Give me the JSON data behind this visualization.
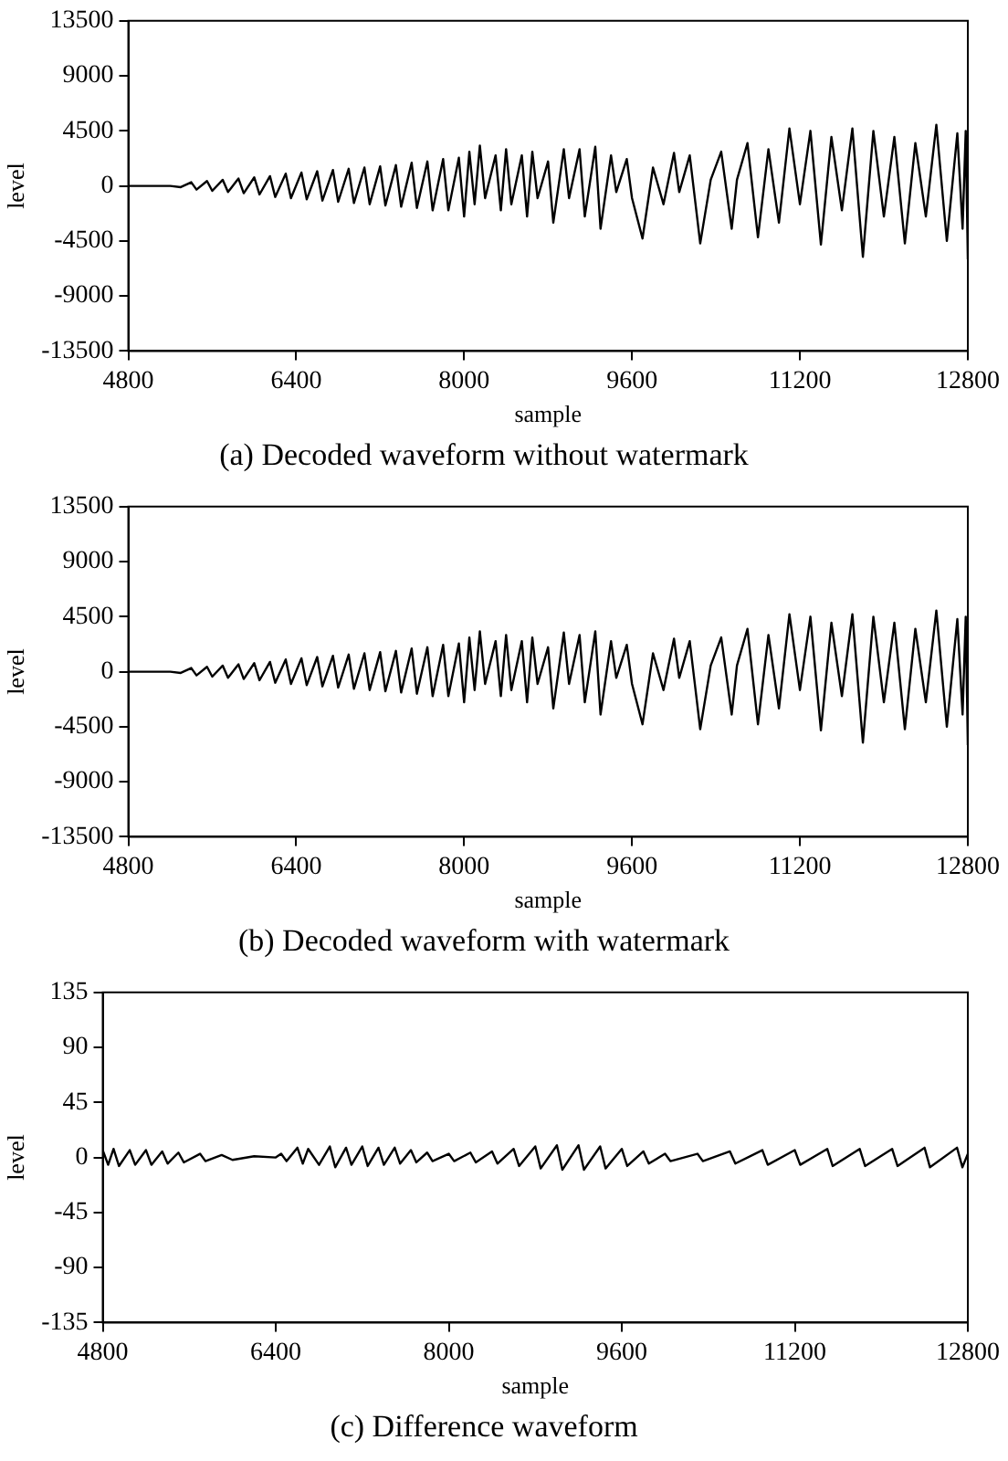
{
  "chart_data": [
    {
      "type": "line",
      "title": "(a) Decoded waveform without watermark",
      "xlabel": "sample",
      "ylabel": "level",
      "color": "#000000",
      "marker": "none",
      "line_style": "solid",
      "grid": false,
      "xlim": [
        4800,
        12800
      ],
      "ylim": [
        -13500,
        13500
      ],
      "xticks": [
        4800,
        6400,
        8000,
        9600,
        11200,
        12800
      ],
      "yticks": [
        -13500,
        -9000,
        -4500,
        0,
        4500,
        9000,
        13500
      ],
      "x": [
        4800,
        5000,
        5200,
        5300,
        5400,
        5450,
        5550,
        5600,
        5700,
        5750,
        5850,
        5900,
        6000,
        6050,
        6150,
        6200,
        6300,
        6350,
        6450,
        6500,
        6600,
        6650,
        6750,
        6800,
        6900,
        6950,
        7050,
        7100,
        7200,
        7250,
        7350,
        7400,
        7500,
        7550,
        7650,
        7700,
        7800,
        7850,
        7950,
        8000,
        8050,
        8100,
        8150,
        8200,
        8300,
        8350,
        8400,
        8450,
        8550,
        8600,
        8650,
        8700,
        8800,
        8850,
        8950,
        9000,
        9100,
        9150,
        9250,
        9300,
        9400,
        9450,
        9550,
        9600,
        9700,
        9800,
        9900,
        10000,
        10050,
        10150,
        10250,
        10350,
        10450,
        10550,
        10600,
        10700,
        10800,
        10900,
        11000,
        11100,
        11200,
        11300,
        11400,
        11500,
        11600,
        11700,
        11800,
        11900,
        12000,
        12100,
        12200,
        12300,
        12400,
        12500,
        12600,
        12700,
        12750,
        12780,
        12800
      ],
      "values": [
        0,
        0,
        0,
        -100,
        300,
        -300,
        400,
        -400,
        500,
        -500,
        600,
        -600,
        700,
        -700,
        800,
        -900,
        1000,
        -1000,
        1100,
        -1100,
        1200,
        -1200,
        1300,
        -1300,
        1400,
        -1400,
        1500,
        -1500,
        1600,
        -1600,
        1700,
        -1700,
        1900,
        -1800,
        2000,
        -2000,
        2200,
        -2000,
        2300,
        -2500,
        2800,
        -1500,
        3300,
        -1000,
        2500,
        -2000,
        3000,
        -1500,
        2500,
        -2500,
        2800,
        -1000,
        2000,
        -3000,
        3000,
        -1000,
        3000,
        -2500,
        3200,
        -3500,
        2500,
        -500,
        2200,
        -1000,
        -4300,
        1500,
        -1500,
        2700,
        -500,
        2500,
        -4700,
        500,
        2800,
        -3500,
        500,
        3500,
        -4200,
        3000,
        -3000,
        4700,
        -1500,
        4500,
        -4800,
        4000,
        -2000,
        4700,
        -5800,
        4500,
        -2500,
        4000,
        -4700,
        3500,
        -2500,
        5000,
        -4500,
        4300,
        -3500,
        4500,
        -6000
      ]
    },
    {
      "type": "line",
      "title": "(b) Decoded waveform with watermark",
      "xlabel": "sample",
      "ylabel": "level",
      "color": "#000000",
      "marker": "none",
      "line_style": "solid",
      "grid": false,
      "xlim": [
        4800,
        12800
      ],
      "ylim": [
        -13500,
        13500
      ],
      "xticks": [
        4800,
        6400,
        8000,
        9600,
        11200,
        12800
      ],
      "yticks": [
        -13500,
        -9000,
        -4500,
        0,
        4500,
        9000,
        13500
      ],
      "x": [
        4800,
        5000,
        5200,
        5300,
        5400,
        5450,
        5550,
        5600,
        5700,
        5750,
        5850,
        5900,
        6000,
        6050,
        6150,
        6200,
        6300,
        6350,
        6450,
        6500,
        6600,
        6650,
        6750,
        6800,
        6900,
        6950,
        7050,
        7100,
        7200,
        7250,
        7350,
        7400,
        7500,
        7550,
        7650,
        7700,
        7800,
        7850,
        7950,
        8000,
        8050,
        8100,
        8150,
        8200,
        8300,
        8350,
        8400,
        8450,
        8550,
        8600,
        8650,
        8700,
        8800,
        8850,
        8950,
        9000,
        9100,
        9150,
        9250,
        9300,
        9400,
        9450,
        9550,
        9600,
        9700,
        9800,
        9900,
        10000,
        10050,
        10150,
        10250,
        10350,
        10450,
        10550,
        10600,
        10700,
        10800,
        10900,
        11000,
        11100,
        11200,
        11300,
        11400,
        11500,
        11600,
        11700,
        11800,
        11900,
        12000,
        12100,
        12200,
        12300,
        12400,
        12500,
        12600,
        12700,
        12750,
        12780,
        12800
      ],
      "values": [
        0,
        0,
        0,
        -100,
        300,
        -300,
        400,
        -400,
        500,
        -500,
        600,
        -600,
        700,
        -700,
        800,
        -900,
        1000,
        -1000,
        1100,
        -1100,
        1200,
        -1200,
        1300,
        -1300,
        1400,
        -1400,
        1500,
        -1500,
        1600,
        -1600,
        1700,
        -1700,
        1900,
        -1800,
        2000,
        -2000,
        2200,
        -2000,
        2300,
        -2500,
        2800,
        -1500,
        3300,
        -1000,
        2500,
        -2000,
        3000,
        -1500,
        2500,
        -2500,
        2800,
        -1000,
        2000,
        -3000,
        3200,
        -1000,
        3000,
        -2500,
        3300,
        -3500,
        2500,
        -500,
        2200,
        -1000,
        -4300,
        1500,
        -1500,
        2700,
        -500,
        2500,
        -4700,
        500,
        2800,
        -3500,
        500,
        3500,
        -4300,
        3000,
        -3000,
        4700,
        -1500,
        4500,
        -4800,
        4000,
        -2000,
        4700,
        -5800,
        4500,
        -2500,
        4000,
        -4700,
        3500,
        -2500,
        5000,
        -4500,
        4300,
        -3500,
        4500,
        -6000
      ]
    },
    {
      "type": "line",
      "title": "(c) Difference waveform",
      "xlabel": "sample",
      "ylabel": "level",
      "color": "#000000",
      "marker": "none",
      "line_style": "solid",
      "grid": false,
      "xlim": [
        4800,
        12800
      ],
      "ylim": [
        -135,
        135
      ],
      "xticks": [
        4800,
        6400,
        8000,
        9600,
        11200,
        12800
      ],
      "yticks": [
        -135,
        -90,
        -45,
        0,
        45,
        90,
        135
      ],
      "x": [
        4800,
        4850,
        4900,
        4950,
        5050,
        5100,
        5200,
        5250,
        5350,
        5400,
        5500,
        5550,
        5700,
        5750,
        5900,
        6000,
        6200,
        6400,
        6450,
        6500,
        6600,
        6650,
        6700,
        6800,
        6900,
        6950,
        7050,
        7100,
        7200,
        7250,
        7350,
        7400,
        7500,
        7550,
        7650,
        7700,
        7800,
        7850,
        8000,
        8050,
        8200,
        8250,
        8400,
        8450,
        8600,
        8650,
        8800,
        8850,
        9000,
        9050,
        9200,
        9250,
        9400,
        9450,
        9600,
        9650,
        9800,
        9850,
        10000,
        10050,
        10300,
        10350,
        10600,
        10650,
        10900,
        10950,
        11200,
        11250,
        11500,
        11550,
        11800,
        11850,
        12100,
        12150,
        12400,
        12450,
        12700,
        12750,
        12800
      ],
      "values": [
        6,
        -6,
        7,
        -7,
        6,
        -6,
        6,
        -6,
        5,
        -5,
        4,
        -4,
        3,
        -3,
        2,
        -2,
        1,
        0,
        3,
        -3,
        8,
        -5,
        7,
        -6,
        9,
        -8,
        8,
        -6,
        9,
        -7,
        8,
        -6,
        8,
        -5,
        6,
        -4,
        4,
        -3,
        3,
        -3,
        4,
        -4,
        5,
        -5,
        7,
        -7,
        9,
        -9,
        10,
        -10,
        10,
        -10,
        9,
        -9,
        7,
        -7,
        5,
        -5,
        3,
        -3,
        3,
        -3,
        5,
        -5,
        6,
        -6,
        6,
        -6,
        7,
        -7,
        7,
        -7,
        7,
        -7,
        8,
        -8,
        8,
        -8,
        3
      ]
    }
  ]
}
